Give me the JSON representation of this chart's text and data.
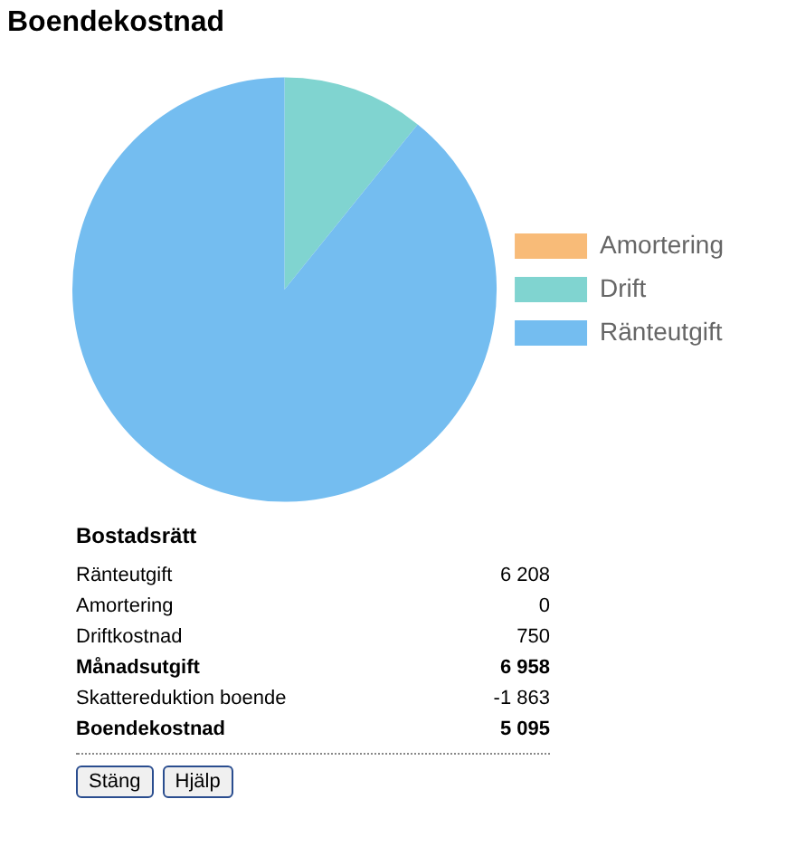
{
  "chart_data": {
    "type": "pie",
    "title": "Boendekostnad",
    "categories": [
      "Amortering",
      "Drift",
      "Ränteutgift"
    ],
    "values": [
      0,
      10.8,
      89.2
    ],
    "colors": [
      "#f8bb78",
      "#80d4d0",
      "#74bdf0"
    ],
    "legend": "right",
    "annotations": [
      "Bostadsrätt",
      "Ränteutgift\t6 208",
      "Amortering\t0",
      "Driftkostnad\t750",
      "Månadsutgift\t6 958",
      "Skattereduktion boende\t-1 863",
      "Boendekostnad\t5 095",
      "Stäng",
      "Hjälp"
    ]
  }
}
